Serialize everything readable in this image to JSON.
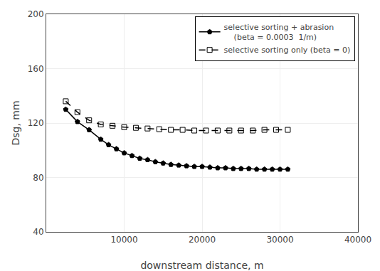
{
  "chart_data": {
    "type": "line",
    "xlabel": "downstream distance, m",
    "ylabel": "Dsg, mm",
    "xlim": [
      0,
      40000
    ],
    "ylim": [
      40,
      200
    ],
    "xticks": [
      10000,
      20000,
      30000,
      40000
    ],
    "yticks": [
      40,
      80,
      120,
      160,
      200
    ],
    "grid": true,
    "legend": "upper right",
    "series": [
      {
        "name": "selective sorting + abrasion\n    (beta = 0.0003  1/m)",
        "color": "#000000",
        "line_style": "solid",
        "marker": "pentagon",
        "x": [
          2500,
          4000,
          5500,
          7000,
          8000,
          9000,
          10000,
          11000,
          12000,
          13000,
          14000,
          15000,
          16000,
          17000,
          18000,
          19000,
          20000,
          21000,
          22000,
          23000,
          24000,
          25000,
          26000,
          27000,
          28000,
          29000,
          30000,
          31000
        ],
        "values": [
          130,
          121,
          115,
          108,
          104,
          101,
          98,
          96,
          94,
          93,
          91.5,
          90.5,
          89.5,
          89,
          88.5,
          88,
          88,
          87.5,
          87,
          87,
          86.5,
          86.5,
          86.5,
          86,
          86,
          86,
          86,
          86
        ]
      },
      {
        "name": "selective sorting only (beta = 0)",
        "color": "#000000",
        "line_style": "dashed",
        "marker": "square-open",
        "x": [
          2500,
          4000,
          5500,
          7000,
          8500,
          10000,
          11500,
          13000,
          14500,
          16000,
          17500,
          19000,
          20500,
          22000,
          23500,
          25000,
          26500,
          28000,
          29500,
          31000
        ],
        "values": [
          136,
          128,
          122,
          119,
          118,
          117,
          116.5,
          116,
          115.5,
          115,
          115,
          114.5,
          114.5,
          114.5,
          114.5,
          114.5,
          114.5,
          115,
          115,
          115
        ]
      }
    ]
  }
}
